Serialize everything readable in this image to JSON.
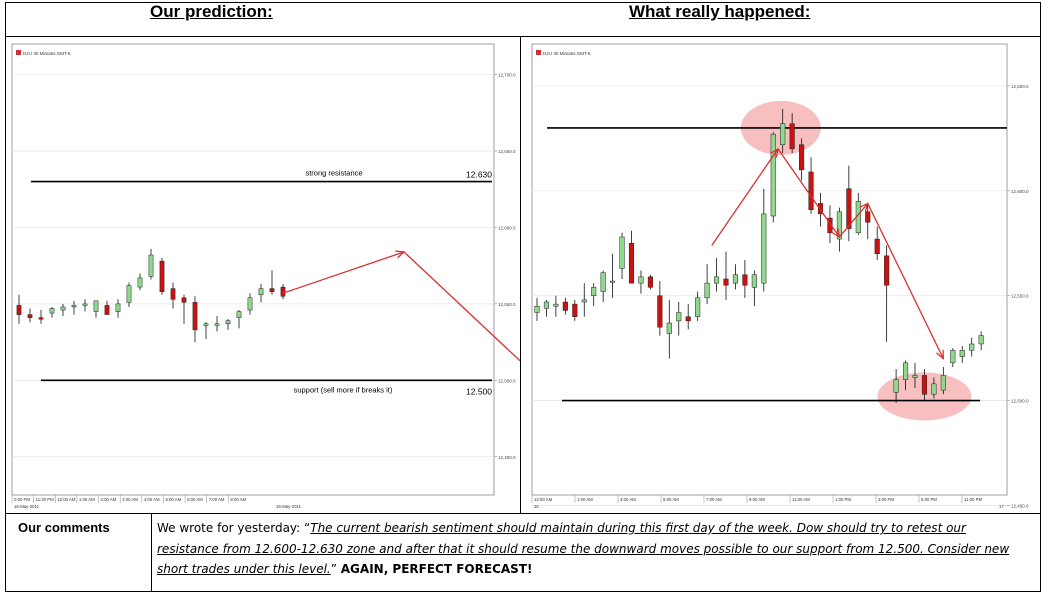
{
  "headers": {
    "left": "Our prediction:",
    "right": "What really happened:"
  },
  "comments": {
    "label": "Our comments",
    "intro": "We wrote for yesterday: “",
    "quote": "The current bearish sentiment should maintain during this first day of the week. Dow should try to retest our resistance from 12.600-12.630 zone and after that it should resume the downward moves possible to our support from 12.500. Consider new short trades under this level.",
    "closing": "” ",
    "verdict": "AGAIN, PERFECT FORECAST!"
  },
  "colors": {
    "bull": "#8fd98f",
    "bear": "#cc1111",
    "arrow": "#d93030",
    "highlight": "#f4a9a9"
  },
  "chart_data": [
    {
      "type": "candlestick",
      "title": "DJI.I 30 Minutes GMT-6",
      "ylim": [
        12425,
        12720
      ],
      "yticks": [
        "12,700.0",
        "12,650.0",
        "12,600.0",
        "12,550.0",
        "12,500.0",
        "12,450.0"
      ],
      "ytick_values": [
        12700,
        12650,
        12600,
        12550,
        12500,
        12450
      ],
      "xticks": [
        "0:00 PM",
        "11:30 PM",
        "12:00 AM",
        "1:00 AM",
        "2:00 AM",
        "3:00 AM",
        "4:00 AM",
        "5:00 AM",
        "6:00 AM",
        "7:00 AM",
        "8:00 AM"
      ],
      "date_labels": [
        "16-May-2011",
        "16-May-2011"
      ],
      "levels": [
        {
          "name": "strong resistance",
          "value": 12630,
          "label": "12.630"
        },
        {
          "name": "support (sell more if breaks it)",
          "value": 12500,
          "label": "12.500"
        }
      ],
      "candles": [
        {
          "o": 12549,
          "h": 12556,
          "l": 12537,
          "c": 12543
        },
        {
          "o": 12543,
          "h": 12547,
          "l": 12538,
          "c": 12541
        },
        {
          "o": 12541,
          "h": 12546,
          "l": 12537,
          "c": 12540
        },
        {
          "o": 12544,
          "h": 12548,
          "l": 12541,
          "c": 12547
        },
        {
          "o": 12546,
          "h": 12550,
          "l": 12542,
          "c": 12548
        },
        {
          "o": 12548,
          "h": 12552,
          "l": 12543,
          "c": 12549
        },
        {
          "o": 12549,
          "h": 12553,
          "l": 12545,
          "c": 12550
        },
        {
          "o": 12545,
          "h": 12552,
          "l": 12541,
          "c": 12552
        },
        {
          "o": 12549,
          "h": 12552,
          "l": 12543,
          "c": 12543
        },
        {
          "o": 12545,
          "h": 12553,
          "l": 12541,
          "c": 12550
        },
        {
          "o": 12551,
          "h": 12564,
          "l": 12548,
          "c": 12562
        },
        {
          "o": 12561,
          "h": 12570,
          "l": 12559,
          "c": 12567
        },
        {
          "o": 12568,
          "h": 12586,
          "l": 12566,
          "c": 12582
        },
        {
          "o": 12578,
          "h": 12580,
          "l": 12556,
          "c": 12558
        },
        {
          "o": 12560,
          "h": 12564,
          "l": 12547,
          "c": 12553
        },
        {
          "o": 12554,
          "h": 12556,
          "l": 12537,
          "c": 12551
        },
        {
          "o": 12551,
          "h": 12555,
          "l": 12525,
          "c": 12533
        },
        {
          "o": 12536,
          "h": 12538,
          "l": 12527,
          "c": 12537
        },
        {
          "o": 12536,
          "h": 12542,
          "l": 12532,
          "c": 12537
        },
        {
          "o": 12537,
          "h": 12540,
          "l": 12533,
          "c": 12539
        },
        {
          "o": 12541,
          "h": 12546,
          "l": 12534,
          "c": 12545
        },
        {
          "o": 12546,
          "h": 12557,
          "l": 12543,
          "c": 12554
        },
        {
          "o": 12556,
          "h": 12563,
          "l": 12551,
          "c": 12560
        },
        {
          "o": 12560,
          "h": 12572,
          "l": 12556,
          "c": 12558
        },
        {
          "o": 12561,
          "h": 12563,
          "l": 12553,
          "c": 12555
        }
      ],
      "projection": [
        {
          "i": 24,
          "v": 12557
        },
        {
          "i": 35,
          "v": 12584
        },
        {
          "i": 47,
          "v": 12503
        },
        {
          "i": 55,
          "v": 12567
        },
        {
          "i": 65,
          "v": 12503
        }
      ]
    },
    {
      "type": "candlestick",
      "title": "DJI.I 30 Minutes GMT-6",
      "ylim": [
        12455,
        12670
      ],
      "yticks": [
        "12,650.0",
        "12,600.0",
        "12,550.0",
        "12,500.0",
        "12,450.0"
      ],
      "ytick_values": [
        12650,
        12600,
        12550,
        12500,
        12450
      ],
      "xticks": [
        "12:00 AM",
        "1:00 AM",
        "3:00 AM",
        "5:00 AM",
        "7:00 AM",
        "9:00 AM",
        "11:00 AM",
        "1:00 PM",
        "3:00 PM",
        "5:00 PM",
        "11:00 PM"
      ],
      "date_labels": [
        "16",
        "17"
      ],
      "levels": [
        {
          "name": "resistance",
          "value": 12630,
          "label": ""
        },
        {
          "name": "support",
          "value": 12500,
          "label": ""
        }
      ],
      "candles": [
        {
          "o": 12542,
          "h": 12549,
          "l": 12538,
          "c": 12545
        },
        {
          "o": 12544,
          "h": 12548,
          "l": 12540,
          "c": 12547
        },
        {
          "o": 12545,
          "h": 12550,
          "l": 12540,
          "c": 12546
        },
        {
          "o": 12547,
          "h": 12549,
          "l": 12541,
          "c": 12543
        },
        {
          "o": 12546,
          "h": 12548,
          "l": 12538,
          "c": 12540
        },
        {
          "o": 12547,
          "h": 12556,
          "l": 12540,
          "c": 12548
        },
        {
          "o": 12550,
          "h": 12556,
          "l": 12545,
          "c": 12554
        },
        {
          "o": 12552,
          "h": 12562,
          "l": 12547,
          "c": 12561
        },
        {
          "o": 12557,
          "h": 12570,
          "l": 12549,
          "c": 12557
        },
        {
          "o": 12563,
          "h": 12580,
          "l": 12558,
          "c": 12578
        },
        {
          "o": 12575,
          "h": 12581,
          "l": 12556,
          "c": 12556
        },
        {
          "o": 12556,
          "h": 12562,
          "l": 12551,
          "c": 12559
        },
        {
          "o": 12559,
          "h": 12560,
          "l": 12553,
          "c": 12554
        },
        {
          "o": 12550,
          "h": 12557,
          "l": 12531,
          "c": 12535
        },
        {
          "o": 12532,
          "h": 12548,
          "l": 12520,
          "c": 12537
        },
        {
          "o": 12538,
          "h": 12547,
          "l": 12531,
          "c": 12542
        },
        {
          "o": 12540,
          "h": 12546,
          "l": 12534,
          "c": 12538
        },
        {
          "o": 12540,
          "h": 12552,
          "l": 12538,
          "c": 12549
        },
        {
          "o": 12549,
          "h": 12565,
          "l": 12546,
          "c": 12556
        },
        {
          "o": 12556,
          "h": 12568,
          "l": 12552,
          "c": 12559
        },
        {
          "o": 12558,
          "h": 12571,
          "l": 12548,
          "c": 12555
        },
        {
          "o": 12556,
          "h": 12565,
          "l": 12553,
          "c": 12560
        },
        {
          "o": 12560,
          "h": 12567,
          "l": 12549,
          "c": 12555
        },
        {
          "o": 12554,
          "h": 12562,
          "l": 12545,
          "c": 12560
        },
        {
          "o": 12556,
          "h": 12601,
          "l": 12552,
          "c": 12589
        },
        {
          "o": 12588,
          "h": 12628,
          "l": 12585,
          "c": 12627
        },
        {
          "o": 12622,
          "h": 12639,
          "l": 12618,
          "c": 12632
        },
        {
          "o": 12632,
          "h": 12637,
          "l": 12618,
          "c": 12620
        },
        {
          "o": 12622,
          "h": 12625,
          "l": 12605,
          "c": 12610
        },
        {
          "o": 12609,
          "h": 12616,
          "l": 12589,
          "c": 12591
        },
        {
          "o": 12594,
          "h": 12599,
          "l": 12583,
          "c": 12589
        },
        {
          "o": 12587,
          "h": 12593,
          "l": 12575,
          "c": 12580
        },
        {
          "o": 12577,
          "h": 12592,
          "l": 12571,
          "c": 12590
        },
        {
          "o": 12601,
          "h": 12612,
          "l": 12576,
          "c": 12582
        },
        {
          "o": 12580,
          "h": 12599,
          "l": 12579,
          "c": 12595
        },
        {
          "o": 12590,
          "h": 12594,
          "l": 12577,
          "c": 12585
        },
        {
          "o": 12577,
          "h": 12583,
          "l": 12567,
          "c": 12570
        },
        {
          "o": 12569,
          "h": 12574,
          "l": 12528,
          "c": 12555
        },
        {
          "o": 12504,
          "h": 12515,
          "l": 12499,
          "c": 12510
        },
        {
          "o": 12510,
          "h": 12519,
          "l": 12505,
          "c": 12518
        },
        {
          "o": 12511,
          "h": 12518,
          "l": 12506,
          "c": 12512
        },
        {
          "o": 12512,
          "h": 12515,
          "l": 12500,
          "c": 12503
        },
        {
          "o": 12503,
          "h": 12511,
          "l": 12501,
          "c": 12508
        },
        {
          "o": 12505,
          "h": 12516,
          "l": 12503,
          "c": 12512
        },
        {
          "o": 12518,
          "h": 12525,
          "l": 12516,
          "c": 12524
        },
        {
          "o": 12521,
          "h": 12526,
          "l": 12518,
          "c": 12524
        },
        {
          "o": 12524,
          "h": 12530,
          "l": 12521,
          "c": 12527
        },
        {
          "o": 12527,
          "h": 12533,
          "l": 12524,
          "c": 12531
        }
      ],
      "arrows": [
        {
          "from": {
            "i": 18.5,
            "v": 12574
          },
          "to": {
            "i": 25.5,
            "v": 12620
          }
        },
        {
          "from": {
            "i": 25.5,
            "v": 12620
          },
          "to": {
            "i": 32,
            "v": 12578
          }
        },
        {
          "from": {
            "i": 32,
            "v": 12578
          },
          "to": {
            "i": 35,
            "v": 12594
          }
        },
        {
          "from": {
            "i": 35,
            "v": 12594
          },
          "to": {
            "i": 43,
            "v": 12520
          }
        }
      ],
      "highlights": [
        {
          "ci": 25.8,
          "cv": 12630,
          "rx": 40,
          "ry": 27
        },
        {
          "ci": 41,
          "cv": 12502,
          "rx": 47,
          "ry": 24
        }
      ]
    }
  ]
}
